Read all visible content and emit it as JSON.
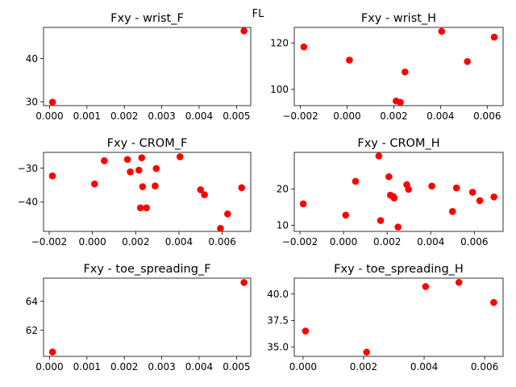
{
  "figure": {
    "suptitle": "FL"
  },
  "chart_data": [
    {
      "type": "scatter",
      "title": "Fxy - wrist_F",
      "xlabel": "",
      "ylabel": "",
      "xlim": [
        -0.00016,
        0.00538
      ],
      "ylim": [
        29.1,
        47.2
      ],
      "xticks": [
        0.0,
        0.001,
        0.002,
        0.003,
        0.004,
        0.005
      ],
      "xtick_labels": [
        "0.000",
        "0.001",
        "0.002",
        "0.003",
        "0.004",
        "0.005"
      ],
      "yticks": [
        30,
        40
      ],
      "ytick_labels": [
        "30",
        "40"
      ],
      "grid": false,
      "marker_color": "#ff0000",
      "points": [
        {
          "x": 8e-05,
          "y": 29.9
        },
        {
          "x": 0.0052,
          "y": 46.4
        }
      ]
    },
    {
      "type": "scatter",
      "title": "Fxy - wrist_H",
      "xlabel": "",
      "ylabel": "",
      "xlim": [
        -0.00226,
        0.00668
      ],
      "ylim": [
        93.0,
        126.7
      ],
      "xticks": [
        -0.002,
        0.0,
        0.002,
        0.004,
        0.006
      ],
      "xtick_labels": [
        "−0.002",
        "0.000",
        "0.002",
        "0.004",
        "0.006"
      ],
      "yticks": [
        100,
        120
      ],
      "ytick_labels": [
        "100",
        "120"
      ],
      "grid": false,
      "marker_color": "#ff0000",
      "points": [
        {
          "x": -0.00185,
          "y": 118.3
        },
        {
          "x": 0.0001,
          "y": 112.6
        },
        {
          "x": 0.0021,
          "y": 95.0
        },
        {
          "x": 0.00228,
          "y": 94.4
        },
        {
          "x": 0.00248,
          "y": 107.5
        },
        {
          "x": 0.00405,
          "y": 125.0
        },
        {
          "x": 0.00515,
          "y": 112.0
        },
        {
          "x": 0.0063,
          "y": 122.5
        }
      ]
    },
    {
      "type": "scatter",
      "title": "Fxy - CROM_F",
      "xlabel": "",
      "ylabel": "",
      "xlim": [
        -0.00226,
        0.00732
      ],
      "ylim": [
        -48.8,
        -25.3
      ],
      "xticks": [
        -0.002,
        0.0,
        0.002,
        0.004,
        0.006
      ],
      "xtick_labels": [
        "−0.002",
        "0.000",
        "0.002",
        "0.004",
        "0.006"
      ],
      "yticks": [
        -30,
        -40
      ],
      "ytick_labels": [
        "−30",
        "−40"
      ],
      "grid": false,
      "marker_color": "#ff0000",
      "points": [
        {
          "x": -0.00185,
          "y": -32.3
        },
        {
          "x": 0.0001,
          "y": -34.7
        },
        {
          "x": 0.00055,
          "y": -27.8
        },
        {
          "x": 0.00162,
          "y": -27.4
        },
        {
          "x": 0.00175,
          "y": -31.1
        },
        {
          "x": 0.00215,
          "y": -30.6
        },
        {
          "x": 0.00222,
          "y": -41.8
        },
        {
          "x": 0.00228,
          "y": -26.9
        },
        {
          "x": 0.00232,
          "y": -35.5
        },
        {
          "x": 0.0025,
          "y": -41.8
        },
        {
          "x": 0.0029,
          "y": -35.3
        },
        {
          "x": 0.00295,
          "y": -30.1
        },
        {
          "x": 0.00405,
          "y": -26.6
        },
        {
          "x": 0.005,
          "y": -36.4
        },
        {
          "x": 0.00518,
          "y": -37.9
        },
        {
          "x": 0.00592,
          "y": -47.9
        },
        {
          "x": 0.00625,
          "y": -43.6
        },
        {
          "x": 0.0069,
          "y": -35.8
        }
      ]
    },
    {
      "type": "scatter",
      "title": "Fxy - CROM_H",
      "xlabel": "",
      "ylabel": "",
      "xlim": [
        -0.00226,
        0.00732
      ],
      "ylim": [
        8.3,
        30.1
      ],
      "xticks": [
        -0.002,
        0.0,
        0.002,
        0.004,
        0.006
      ],
      "xtick_labels": [
        "−0.002",
        "0.000",
        "0.002",
        "0.004",
        "0.006"
      ],
      "yticks": [
        10,
        20
      ],
      "ytick_labels": [
        "10",
        "20"
      ],
      "grid": false,
      "marker_color": "#ff0000",
      "points": [
        {
          "x": -0.00185,
          "y": 15.9
        },
        {
          "x": 0.0001,
          "y": 12.8
        },
        {
          "x": 0.00055,
          "y": 22.1
        },
        {
          "x": 0.00162,
          "y": 29.1
        },
        {
          "x": 0.0017,
          "y": 11.3
        },
        {
          "x": 0.00208,
          "y": 23.4
        },
        {
          "x": 0.00215,
          "y": 18.3
        },
        {
          "x": 0.00228,
          "y": 17.9
        },
        {
          "x": 0.00232,
          "y": 17.5
        },
        {
          "x": 0.0025,
          "y": 9.5
        },
        {
          "x": 0.0029,
          "y": 21.2
        },
        {
          "x": 0.00298,
          "y": 19.9
        },
        {
          "x": 0.00405,
          "y": 20.8
        },
        {
          "x": 0.005,
          "y": 13.8
        },
        {
          "x": 0.00518,
          "y": 20.3
        },
        {
          "x": 0.00592,
          "y": 19.1
        },
        {
          "x": 0.00625,
          "y": 16.8
        },
        {
          "x": 0.0069,
          "y": 17.8
        }
      ]
    },
    {
      "type": "scatter",
      "title": "Fxy - toe_spreading_F",
      "xlabel": "",
      "ylabel": "",
      "xlim": [
        -0.00016,
        0.00538
      ],
      "ylim": [
        60.2,
        65.6
      ],
      "xticks": [
        0.0,
        0.001,
        0.002,
        0.003,
        0.004,
        0.005
      ],
      "xtick_labels": [
        "0.000",
        "0.001",
        "0.002",
        "0.003",
        "0.004",
        "0.005"
      ],
      "yticks": [
        62,
        64
      ],
      "ytick_labels": [
        "62",
        "64"
      ],
      "grid": false,
      "marker_color": "#ff0000",
      "points": [
        {
          "x": 8e-05,
          "y": 60.5
        },
        {
          "x": 0.0052,
          "y": 65.3
        }
      ]
    },
    {
      "type": "scatter",
      "title": "Fxy - toe_spreading_H",
      "xlabel": "",
      "ylabel": "",
      "xlim": [
        -0.00029,
        0.00661
      ],
      "ylim": [
        34.1,
        41.5
      ],
      "xticks": [
        0.0,
        0.002,
        0.004,
        0.006
      ],
      "xtick_labels": [
        "0.000",
        "0.002",
        "0.004",
        "0.006"
      ],
      "yticks": [
        35.0,
        37.5,
        40.0
      ],
      "ytick_labels": [
        "35.0",
        "37.5",
        "40.0"
      ],
      "grid": false,
      "marker_color": "#ff0000",
      "points": [
        {
          "x": 8e-05,
          "y": 36.5
        },
        {
          "x": 0.0021,
          "y": 34.5
        },
        {
          "x": 0.00405,
          "y": 40.7
        },
        {
          "x": 0.00515,
          "y": 41.1
        },
        {
          "x": 0.0063,
          "y": 39.2
        }
      ]
    }
  ]
}
